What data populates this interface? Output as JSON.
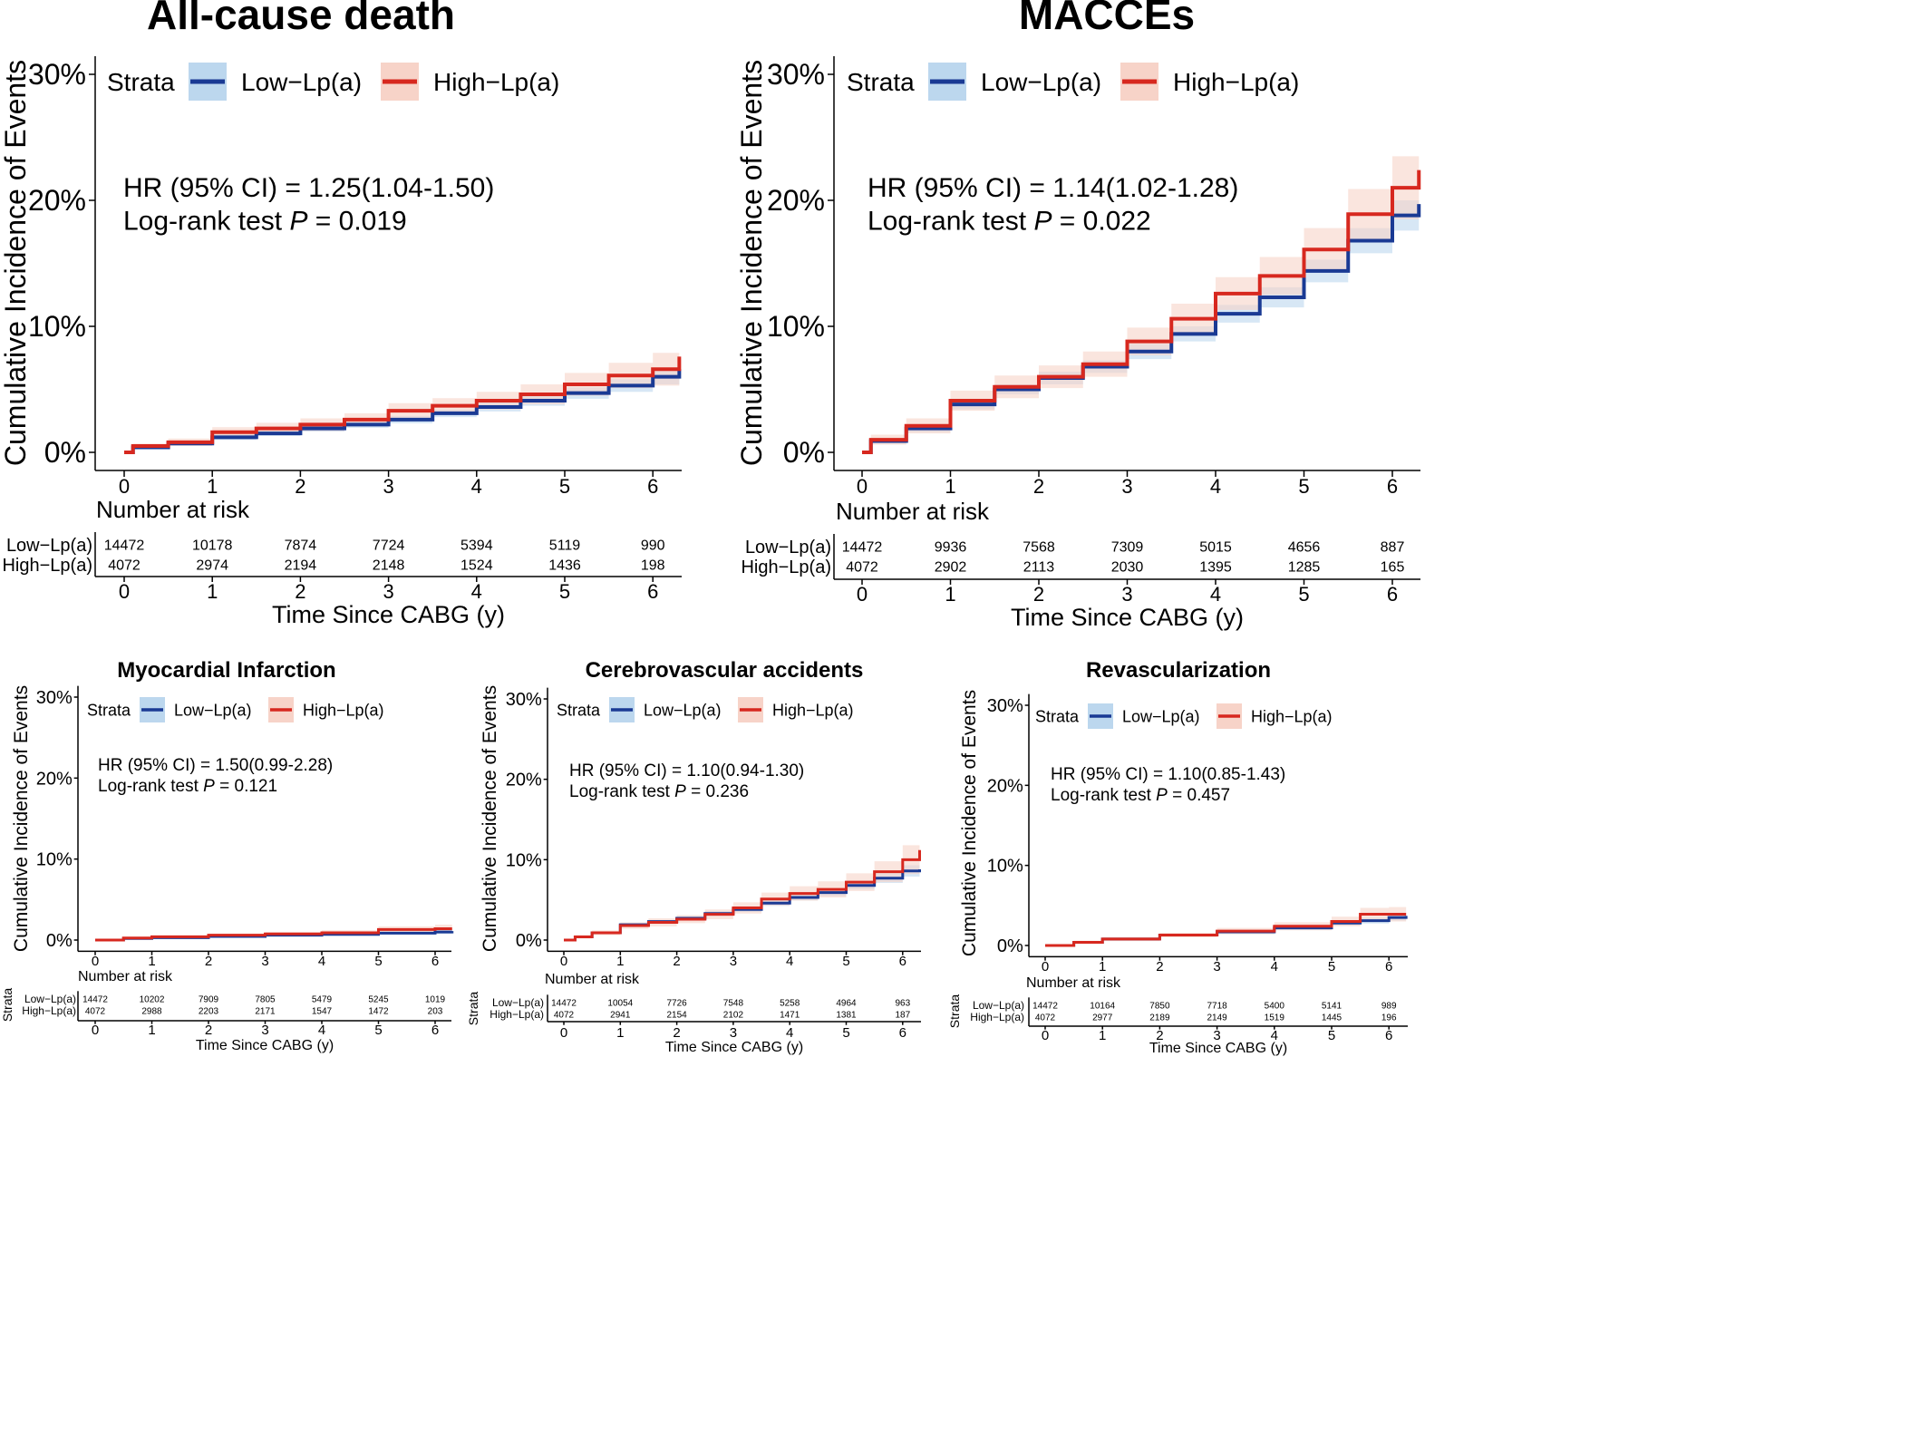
{
  "chart_data": [
    {
      "type": "line",
      "chart_kind": "kaplan-meier cumulative incidence",
      "title": "All-cause death",
      "xlabel": "Time Since CABG (y)",
      "ylabel": "Cumulative Incidence of Events",
      "xlim": [
        0,
        6.3
      ],
      "ylim": [
        0,
        30
      ],
      "x_ticks": [
        0,
        1,
        2,
        3,
        4,
        5,
        6
      ],
      "y_tick_labels": [
        "0%",
        "10%",
        "20%",
        "30%"
      ],
      "y_ticks": [
        0,
        10,
        20,
        30
      ],
      "legend_title": "Strata",
      "legend_position": "top-left",
      "grid": false,
      "annotation_hr": "HR (95% CI) =  1.25(1.04-1.50)",
      "annotation_p_prefix": "Log-rank test ",
      "annotation_p_italic": "P",
      "annotation_p_value": " = 0.019",
      "risk_table_title": "Number at risk",
      "risk_table_show_strata_label": false,
      "series": [
        {
          "name": "Low−Lp(a)",
          "color": "#1a3a94",
          "ci_color": "#bcd7ee",
          "x": [
            0,
            0.1,
            0.5,
            1,
            1.5,
            2,
            2.5,
            3,
            3.5,
            4,
            4.5,
            5,
            5.5,
            6,
            6.3
          ],
          "y": [
            0,
            0.4,
            0.7,
            1.2,
            1.5,
            1.9,
            2.2,
            2.6,
            3.1,
            3.6,
            4.1,
            4.7,
            5.3,
            6.0,
            6.6
          ],
          "ci_halfwidth": [
            0,
            0.1,
            0.15,
            0.2,
            0.2,
            0.25,
            0.25,
            0.3,
            0.3,
            0.35,
            0.4,
            0.45,
            0.5,
            0.6,
            0.8
          ],
          "at_risk": [
            "14472",
            "10178",
            "7874",
            "7724",
            "5394",
            "5119",
            "990"
          ]
        },
        {
          "name": "High−Lp(a)",
          "color": "#d7281f",
          "ci_color": "#f7d3c8",
          "x": [
            0,
            0.1,
            0.5,
            1,
            1.5,
            2,
            2.5,
            3,
            3.5,
            4,
            4.5,
            5,
            5.5,
            6,
            6.3
          ],
          "y": [
            0,
            0.5,
            0.8,
            1.6,
            1.9,
            2.2,
            2.6,
            3.3,
            3.7,
            4.1,
            4.6,
            5.4,
            6.1,
            6.6,
            7.6
          ],
          "ci_halfwidth": [
            0,
            0.2,
            0.3,
            0.4,
            0.45,
            0.5,
            0.5,
            0.6,
            0.6,
            0.7,
            0.8,
            0.9,
            1.0,
            1.3,
            2.0
          ],
          "at_risk": [
            "4072",
            "2974",
            "2194",
            "2148",
            "1524",
            "1436",
            "198"
          ]
        }
      ]
    },
    {
      "type": "line",
      "chart_kind": "kaplan-meier cumulative incidence",
      "title": "MACCEs",
      "xlabel": "Time Since CABG (y)",
      "ylabel": "Cumulative Incidence of Events",
      "xlim": [
        0,
        6.3
      ],
      "ylim": [
        0,
        30
      ],
      "x_ticks": [
        0,
        1,
        2,
        3,
        4,
        5,
        6
      ],
      "y_tick_labels": [
        "0%",
        "10%",
        "20%",
        "30%"
      ],
      "y_ticks": [
        0,
        10,
        20,
        30
      ],
      "legend_title": "Strata",
      "legend_position": "top-left",
      "grid": false,
      "annotation_hr": "HR (95% CI) =  1.14(1.02-1.28)",
      "annotation_p_prefix": "Log-rank test ",
      "annotation_p_italic": "P",
      "annotation_p_value": " = 0.022",
      "risk_table_title": "Number at risk",
      "risk_table_show_strata_label": false,
      "series": [
        {
          "name": "Low−Lp(a)",
          "color": "#1a3a94",
          "ci_color": "#bcd7ee",
          "x": [
            0,
            0.1,
            0.5,
            1,
            1.5,
            2,
            2.5,
            3,
            3.5,
            4,
            4.5,
            5,
            5.5,
            6,
            6.3
          ],
          "y": [
            0,
            0.9,
            1.9,
            3.8,
            5.0,
            5.9,
            6.8,
            8.0,
            9.4,
            11.0,
            12.3,
            14.4,
            16.8,
            18.8,
            19.7
          ],
          "ci_halfwidth": [
            0,
            0.2,
            0.3,
            0.4,
            0.4,
            0.5,
            0.5,
            0.6,
            0.6,
            0.7,
            0.8,
            0.9,
            1.0,
            1.2,
            1.5
          ],
          "at_risk": [
            "14472",
            "9936",
            "7568",
            "7309",
            "5015",
            "4656",
            "887"
          ]
        },
        {
          "name": "High−Lp(a)",
          "color": "#d7281f",
          "ci_color": "#f7d3c8",
          "x": [
            0,
            0.1,
            0.5,
            1,
            1.5,
            2,
            2.5,
            3,
            3.5,
            4,
            4.5,
            5,
            5.5,
            6,
            6.3
          ],
          "y": [
            0,
            1.0,
            2.1,
            4.1,
            5.2,
            6.0,
            7.0,
            8.8,
            10.6,
            12.6,
            14.0,
            16.1,
            18.9,
            21.0,
            22.4
          ],
          "ci_halfwidth": [
            0,
            0.4,
            0.6,
            0.8,
            0.9,
            0.9,
            1.0,
            1.1,
            1.2,
            1.3,
            1.5,
            1.7,
            2.0,
            2.5,
            3.4
          ],
          "at_risk": [
            "4072",
            "2902",
            "2113",
            "2030",
            "1395",
            "1285",
            "165"
          ]
        }
      ]
    },
    {
      "type": "line",
      "chart_kind": "kaplan-meier cumulative incidence",
      "title": "Myocardial Infarction",
      "xlabel": "Time Since CABG (y)",
      "ylabel": "Cumulative Incidence of Events",
      "xlim": [
        0,
        6.3
      ],
      "ylim": [
        0,
        30
      ],
      "x_ticks": [
        0,
        1,
        2,
        3,
        4,
        5,
        6
      ],
      "y_tick_labels": [
        "0%",
        "10%",
        "20%",
        "30%"
      ],
      "y_ticks": [
        0,
        10,
        20,
        30
      ],
      "legend_title": "Strata",
      "legend_position": "top-left",
      "grid": false,
      "annotation_hr": "HR (95% CI) =  1.50(0.99-2.28)",
      "annotation_p_prefix": "Log-rank test ",
      "annotation_p_italic": "P",
      "annotation_p_value": " = 0.121",
      "risk_table_title": "Number at risk",
      "risk_table_show_strata_label": true,
      "risk_table_strata_label": "Strata",
      "series": [
        {
          "name": "Low−Lp(a)",
          "color": "#1a3a94",
          "ci_color": "#bcd7ee",
          "x": [
            0,
            0.5,
            1,
            2,
            3,
            4,
            5,
            6,
            6.3
          ],
          "y": [
            0,
            0.2,
            0.3,
            0.45,
            0.6,
            0.7,
            0.85,
            1.0,
            1.1
          ],
          "ci_halfwidth": [
            0,
            0.05,
            0.08,
            0.1,
            0.12,
            0.15,
            0.18,
            0.25,
            0.3
          ],
          "at_risk": [
            "14472",
            "10202",
            "7909",
            "7805",
            "5479",
            "5245",
            "1019"
          ]
        },
        {
          "name": "High−Lp(a)",
          "color": "#d7281f",
          "ci_color": "#f7d3c8",
          "x": [
            0,
            0.5,
            1,
            2,
            3,
            4,
            5,
            6,
            6.3
          ],
          "y": [
            0,
            0.25,
            0.4,
            0.6,
            0.75,
            0.9,
            1.3,
            1.4,
            1.4
          ],
          "ci_halfwidth": [
            0,
            0.1,
            0.15,
            0.2,
            0.25,
            0.3,
            0.4,
            0.5,
            0.6
          ],
          "at_risk": [
            "4072",
            "2988",
            "2203",
            "2171",
            "1547",
            "1472",
            "203"
          ]
        }
      ]
    },
    {
      "type": "line",
      "chart_kind": "kaplan-meier cumulative incidence",
      "title": "Cerebrovascular accidents",
      "xlabel": "Time Since CABG (y)",
      "ylabel": "Cumulative Incidence of Events",
      "xlim": [
        0,
        6.3
      ],
      "ylim": [
        0,
        30
      ],
      "x_ticks": [
        0,
        1,
        2,
        3,
        4,
        5,
        6
      ],
      "y_tick_labels": [
        "0%",
        "10%",
        "20%",
        "30%"
      ],
      "y_ticks": [
        0,
        10,
        20,
        30
      ],
      "legend_title": "Strata",
      "legend_position": "top-left",
      "grid": false,
      "annotation_hr": "HR (95% CI) =  1.10(0.94-1.30)",
      "annotation_p_prefix": "Log-rank test ",
      "annotation_p_italic": "P",
      "annotation_p_value": " = 0.236",
      "risk_table_title": "Number at risk",
      "risk_table_show_strata_label": true,
      "risk_table_strata_label": "Strata",
      "series": [
        {
          "name": "Low−Lp(a)",
          "color": "#1a3a94",
          "ci_color": "#bcd7ee",
          "x": [
            0,
            0.2,
            0.5,
            1,
            1.5,
            2,
            2.5,
            3,
            3.5,
            4,
            4.5,
            5,
            5.5,
            6,
            6.3
          ],
          "y": [
            0,
            0.4,
            0.9,
            1.9,
            2.3,
            2.7,
            3.3,
            3.8,
            4.6,
            5.3,
            5.9,
            6.8,
            7.7,
            8.6,
            8.8
          ],
          "ci_halfwidth": [
            0,
            0.1,
            0.15,
            0.2,
            0.2,
            0.25,
            0.3,
            0.3,
            0.35,
            0.4,
            0.45,
            0.5,
            0.6,
            0.7,
            0.8
          ],
          "at_risk": [
            "14472",
            "10054",
            "7726",
            "7548",
            "5258",
            "4964",
            "963"
          ]
        },
        {
          "name": "High−Lp(a)",
          "color": "#d7281f",
          "ci_color": "#f7d3c8",
          "x": [
            0,
            0.2,
            0.5,
            1,
            1.5,
            2,
            2.5,
            3,
            3.5,
            4,
            4.5,
            5,
            5.5,
            6,
            6.3
          ],
          "y": [
            0,
            0.4,
            0.9,
            1.8,
            2.2,
            2.6,
            3.2,
            4.0,
            5.1,
            5.8,
            6.3,
            7.2,
            8.5,
            10.0,
            11.2
          ],
          "ci_halfwidth": [
            0,
            0.2,
            0.3,
            0.4,
            0.5,
            0.5,
            0.6,
            0.7,
            0.8,
            0.9,
            1.0,
            1.1,
            1.3,
            1.8,
            2.6
          ],
          "at_risk": [
            "4072",
            "2941",
            "2154",
            "2102",
            "1471",
            "1381",
            "187"
          ]
        }
      ]
    },
    {
      "type": "line",
      "chart_kind": "kaplan-meier cumulative incidence",
      "title": "Revascularization",
      "xlabel": "Time Since CABG (y)",
      "ylabel": "Cumulative Incidence of Events",
      "xlim": [
        0,
        6.3
      ],
      "ylim": [
        0,
        30
      ],
      "x_ticks": [
        0,
        1,
        2,
        3,
        4,
        5,
        6
      ],
      "y_tick_labels": [
        "0%",
        "10%",
        "20%",
        "30%"
      ],
      "y_ticks": [
        0,
        10,
        20,
        30
      ],
      "legend_title": "Strata",
      "legend_position": "top-left",
      "grid": false,
      "annotation_hr": "HR (95% CI) =  1.10(0.85-1.43)",
      "annotation_p_prefix": "Log-rank test ",
      "annotation_p_italic": "P",
      "annotation_p_value": " = 0.457",
      "risk_table_title": "Number at risk",
      "risk_table_show_strata_label": true,
      "risk_table_strata_label": "Strata",
      "series": [
        {
          "name": "Low−Lp(a)",
          "color": "#1a3a94",
          "ci_color": "#bcd7ee",
          "x": [
            0,
            0.5,
            1,
            2,
            3,
            4,
            5,
            5.5,
            6,
            6.3
          ],
          "y": [
            0,
            0.4,
            0.8,
            1.3,
            1.7,
            2.2,
            2.8,
            3.1,
            3.5,
            3.7
          ],
          "ci_halfwidth": [
            0,
            0.1,
            0.12,
            0.15,
            0.2,
            0.25,
            0.3,
            0.35,
            0.4,
            0.5
          ],
          "at_risk": [
            "14472",
            "10164",
            "7850",
            "7718",
            "5400",
            "5141",
            "989"
          ]
        },
        {
          "name": "High−Lp(a)",
          "color": "#d7281f",
          "ci_color": "#f7d3c8",
          "x": [
            0,
            0.5,
            1,
            2,
            3,
            4,
            5,
            5.5,
            6,
            6.3
          ],
          "y": [
            0,
            0.4,
            0.8,
            1.3,
            1.8,
            2.4,
            3.0,
            3.9,
            3.9,
            3.9
          ],
          "ci_halfwidth": [
            0,
            0.2,
            0.25,
            0.3,
            0.4,
            0.5,
            0.6,
            0.8,
            0.9,
            1.0
          ],
          "at_risk": [
            "4072",
            "2977",
            "2189",
            "2149",
            "1519",
            "1445",
            "196"
          ]
        }
      ]
    }
  ]
}
